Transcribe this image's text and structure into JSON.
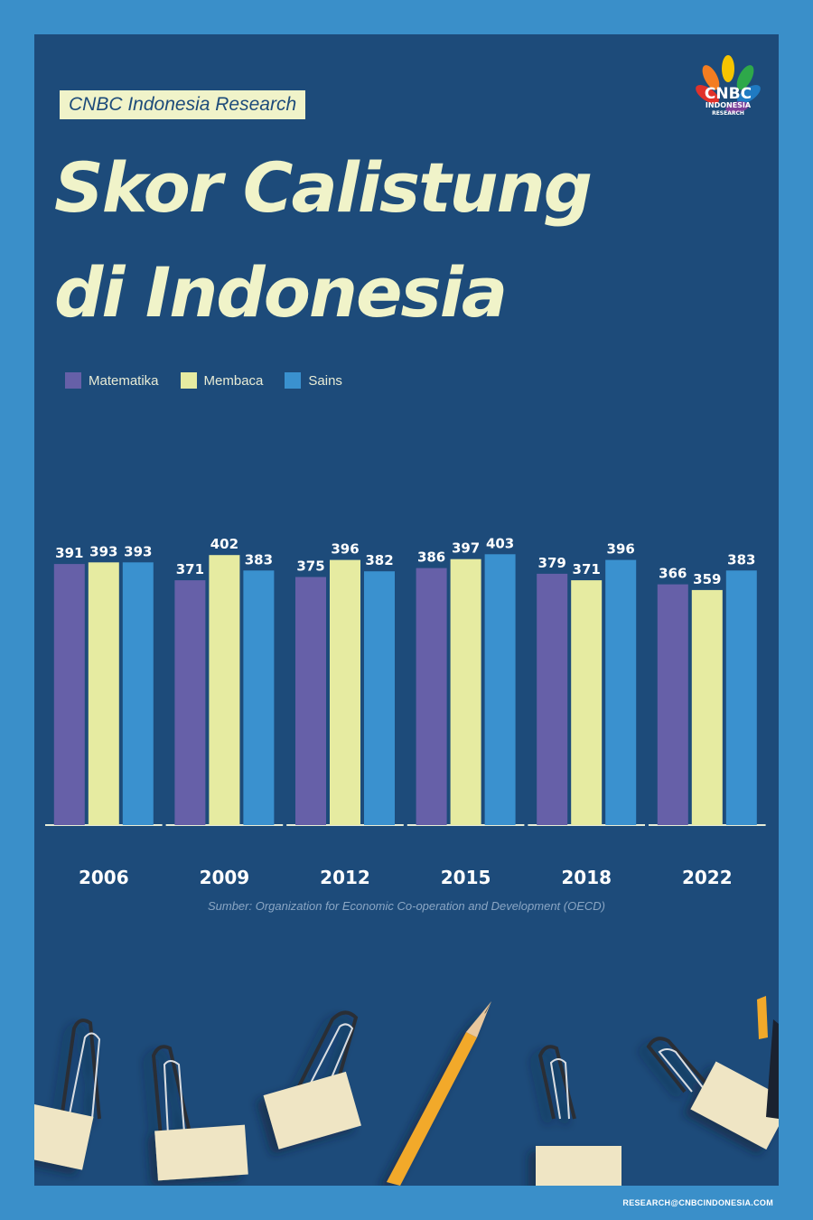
{
  "header": {
    "tag": "CNBC Indonesia Research",
    "title_line1": "Skor Calistung",
    "title_line2": "di Indonesia",
    "logo_text": "CNBC",
    "logo_sub1": "INDONESIA",
    "logo_sub2": "RESEARCH"
  },
  "colors": {
    "background_outer": "#3a8fc9",
    "panel": "#1d4b7a",
    "matematika": "#6660a8",
    "membaca": "#e6eba1",
    "sains": "#3a91cf",
    "title": "#f0f3c9"
  },
  "chart_data": {
    "type": "bar",
    "categories": [
      "2006",
      "2009",
      "2012",
      "2015",
      "2018",
      "2022"
    ],
    "series": [
      {
        "name": "Matematika",
        "values": [
          391,
          371,
          375,
          386,
          379,
          366
        ]
      },
      {
        "name": "Membaca",
        "values": [
          393,
          402,
          396,
          397,
          371,
          359
        ]
      },
      {
        "name": "Sains",
        "values": [
          393,
          383,
          382,
          403,
          396,
          383
        ]
      }
    ],
    "title": "Skor Calistung di Indonesia",
    "xlabel": "",
    "ylabel": "",
    "ylim": [
      0,
      410
    ],
    "legend": "top-left",
    "grid": false,
    "data_labels": true
  },
  "source": "Sumber: Organization for Economic Co-operation and Development (OECD)",
  "footer": "RESEARCH@CNBCINDONESIA.COM"
}
